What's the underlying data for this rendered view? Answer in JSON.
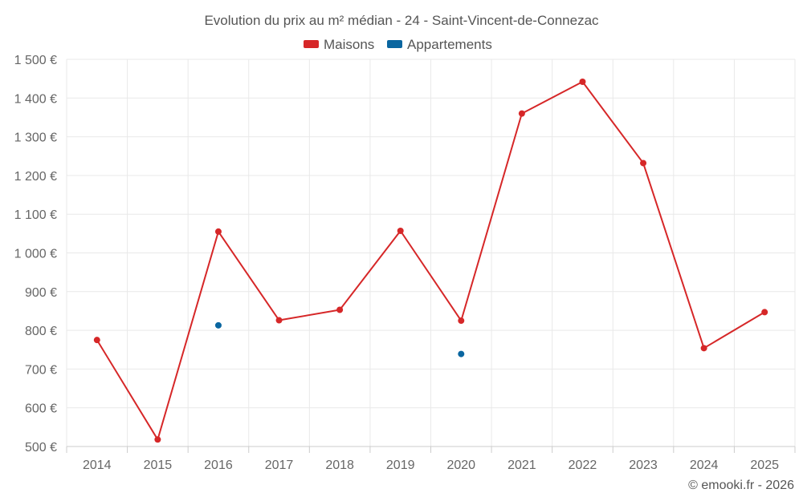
{
  "chart_data": {
    "type": "line",
    "title": "Evolution du prix au m² médian - 24 - Saint-Vincent-de-Connezac",
    "xlabel": "",
    "ylabel": "",
    "categories": [
      "2014",
      "2015",
      "2016",
      "2017",
      "2018",
      "2019",
      "2020",
      "2021",
      "2022",
      "2023",
      "2024",
      "2025"
    ],
    "y_ticks": [
      "500 €",
      "600 €",
      "700 €",
      "800 €",
      "900 €",
      "1 000 €",
      "1 100 €",
      "1 200 €",
      "1 300 €",
      "1 400 €",
      "1 500 €"
    ],
    "ylim": [
      500,
      1500
    ],
    "grid": true,
    "legend_position": "top-center",
    "series": [
      {
        "name": "Maisons",
        "color": "#d62728",
        "values": [
          775,
          518,
          1055,
          826,
          853,
          1057,
          825,
          1360,
          1442,
          1232,
          754,
          847
        ]
      },
      {
        "name": "Appartements",
        "color": "#0a66a0",
        "values": [
          null,
          null,
          813,
          null,
          null,
          null,
          739,
          null,
          null,
          null,
          null,
          null
        ]
      }
    ]
  },
  "credit": "© emooki.fr - 2026"
}
